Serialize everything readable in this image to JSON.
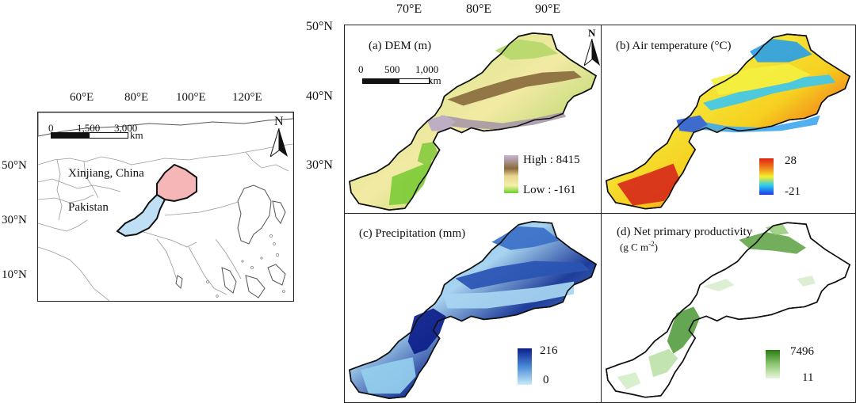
{
  "overview": {
    "lon_labels": [
      "60°E",
      "80°E",
      "100°E",
      "120°E"
    ],
    "lat_labels": [
      "50°N",
      "30°N",
      "10°N"
    ],
    "scale_ticks": [
      "0",
      "1,500",
      "3,000"
    ],
    "scale_unit": "km",
    "north": "N",
    "labels": {
      "xinjiang": "Xinjiang, China",
      "pakistan": "Pakistan"
    },
    "colors": {
      "xinjiang": "#f4b6b6",
      "pakistan": "#bfe0f4"
    }
  },
  "main": {
    "lon_labels": [
      "70°E",
      "80°E",
      "90°E"
    ],
    "lat_labels": [
      "50°N",
      "40°N",
      "30°N"
    ],
    "scale_ticks": [
      "0",
      "500",
      "1,000"
    ],
    "scale_unit": "km",
    "north": "N"
  },
  "panels": {
    "a": {
      "title": "(a) DEM (m)",
      "legend_high": "High : 8415",
      "legend_low": "Low : -161"
    },
    "b": {
      "title": "(b) Air temperature (°C)",
      "legend_max": "28",
      "legend_min": "-21"
    },
    "c": {
      "title": "(c) Precipitation (mm)",
      "legend_max": "216",
      "legend_min": "0"
    },
    "d": {
      "title": "(d) Net primary productivity",
      "unit_prefix": "(g C m",
      "unit_sup": "-2",
      "unit_suffix": ")",
      "legend_max": "7496",
      "legend_min": "11"
    }
  }
}
